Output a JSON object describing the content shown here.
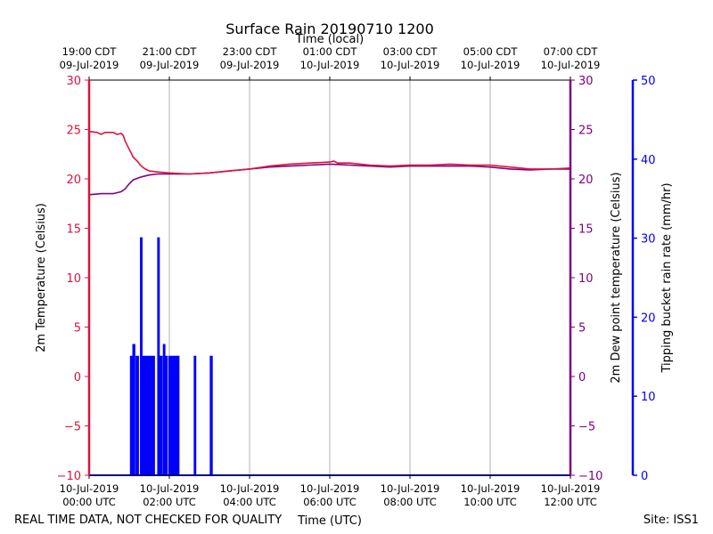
{
  "chart_data": {
    "type": "line",
    "title": "Surface Rain 20190710 1200",
    "top_axis_label": "Time (local)",
    "xlabel": "Time (UTC)",
    "footer_left": "REAL TIME DATA, NOT CHECKED FOR QUALITY",
    "footer_right": "Site: ISS1",
    "x_range_hours": [
      0,
      12
    ],
    "bottom_ticks": [
      {
        "h": 0,
        "line1": "10-Jul-2019",
        "line2": "00:00 UTC"
      },
      {
        "h": 2,
        "line1": "10-Jul-2019",
        "line2": "02:00 UTC"
      },
      {
        "h": 4,
        "line1": "10-Jul-2019",
        "line2": "04:00 UTC"
      },
      {
        "h": 6,
        "line1": "10-Jul-2019",
        "line2": "06:00 UTC"
      },
      {
        "h": 8,
        "line1": "10-Jul-2019",
        "line2": "08:00 UTC"
      },
      {
        "h": 10,
        "line1": "10-Jul-2019",
        "line2": "10:00 UTC"
      },
      {
        "h": 12,
        "line1": "10-Jul-2019",
        "line2": "12:00 UTC"
      }
    ],
    "top_ticks": [
      {
        "h": 0,
        "line1": "19:00 CDT",
        "line2": "09-Jul-2019"
      },
      {
        "h": 2,
        "line1": "21:00 CDT",
        "line2": "09-Jul-2019"
      },
      {
        "h": 4,
        "line1": "23:00 CDT",
        "line2": "09-Jul-2019"
      },
      {
        "h": 6,
        "line1": "01:00 CDT",
        "line2": "10-Jul-2019"
      },
      {
        "h": 8,
        "line1": "03:00 CDT",
        "line2": "10-Jul-2019"
      },
      {
        "h": 10,
        "line1": "05:00 CDT",
        "line2": "10-Jul-2019"
      },
      {
        "h": 12,
        "line1": "07:00 CDT",
        "line2": "10-Jul-2019"
      }
    ],
    "grid": true,
    "left_axis": {
      "label": "2m Temperature (Celsius)",
      "range": [
        -10,
        30
      ],
      "ticks": [
        -10,
        -5,
        0,
        5,
        10,
        15,
        20,
        25,
        30
      ],
      "color": "#dc143c"
    },
    "right_axis": {
      "label": "2m Dew point temperature (Celsius)",
      "range": [
        -10,
        30
      ],
      "ticks": [
        -10,
        -5,
        0,
        5,
        10,
        15,
        20,
        25,
        30
      ],
      "color": "#800080"
    },
    "rain_axis": {
      "label": "Tipping bucket rain rate (mm/hr)",
      "range": [
        0,
        50
      ],
      "ticks": [
        0,
        10,
        20,
        30,
        40,
        50
      ],
      "color": "#0000ff"
    },
    "series": [
      {
        "axis": "left",
        "color": "#dc143c",
        "points": [
          [
            0,
            24.8
          ],
          [
            0.2,
            24.7
          ],
          [
            0.3,
            24.5
          ],
          [
            0.4,
            24.7
          ],
          [
            0.6,
            24.7
          ],
          [
            0.7,
            24.5
          ],
          [
            0.8,
            24.6
          ],
          [
            0.85,
            24.4
          ],
          [
            0.9,
            23.8
          ],
          [
            1.0,
            23.0
          ],
          [
            1.1,
            22.2
          ],
          [
            1.2,
            21.8
          ],
          [
            1.3,
            21.3
          ],
          [
            1.4,
            21.0
          ],
          [
            1.5,
            20.8
          ],
          [
            1.7,
            20.7
          ],
          [
            2.0,
            20.6
          ],
          [
            2.5,
            20.5
          ],
          [
            3.0,
            20.6
          ],
          [
            3.5,
            20.8
          ],
          [
            4.0,
            21.0
          ],
          [
            4.5,
            21.3
          ],
          [
            5.0,
            21.5
          ],
          [
            5.5,
            21.6
          ],
          [
            6.0,
            21.7
          ],
          [
            6.1,
            21.8
          ],
          [
            6.2,
            21.6
          ],
          [
            6.5,
            21.6
          ],
          [
            7.0,
            21.4
          ],
          [
            7.5,
            21.3
          ],
          [
            8.0,
            21.4
          ],
          [
            8.5,
            21.4
          ],
          [
            9.0,
            21.5
          ],
          [
            9.5,
            21.4
          ],
          [
            10.0,
            21.4
          ],
          [
            10.5,
            21.2
          ],
          [
            11.0,
            21.0
          ],
          [
            11.5,
            21.0
          ],
          [
            12.0,
            21.1
          ]
        ]
      },
      {
        "axis": "right",
        "color": "#800080",
        "points": [
          [
            0,
            18.4
          ],
          [
            0.3,
            18.5
          ],
          [
            0.6,
            18.5
          ],
          [
            0.7,
            18.6
          ],
          [
            0.8,
            18.7
          ],
          [
            0.9,
            19.0
          ],
          [
            1.0,
            19.5
          ],
          [
            1.1,
            19.9
          ],
          [
            1.3,
            20.2
          ],
          [
            1.5,
            20.4
          ],
          [
            1.7,
            20.5
          ],
          [
            2.0,
            20.5
          ],
          [
            2.5,
            20.5
          ],
          [
            3.0,
            20.6
          ],
          [
            3.5,
            20.8
          ],
          [
            4.0,
            21.0
          ],
          [
            4.5,
            21.2
          ],
          [
            5.0,
            21.3
          ],
          [
            5.5,
            21.4
          ],
          [
            6.0,
            21.5
          ],
          [
            6.5,
            21.4
          ],
          [
            7.0,
            21.3
          ],
          [
            7.5,
            21.2
          ],
          [
            8.0,
            21.3
          ],
          [
            8.5,
            21.3
          ],
          [
            9.0,
            21.3
          ],
          [
            9.5,
            21.3
          ],
          [
            10.0,
            21.2
          ],
          [
            10.5,
            21.0
          ],
          [
            11.0,
            20.9
          ],
          [
            11.5,
            21.0
          ],
          [
            12.0,
            21.0
          ]
        ]
      },
      {
        "axis": "rain",
        "color": "#0000ff",
        "bursts": [
          {
            "start": 1.04,
            "end": 1.08,
            "value": 15
          },
          {
            "start": 1.1,
            "end": 1.13,
            "value": 16.5
          },
          {
            "start": 1.18,
            "end": 1.22,
            "value": 15
          },
          {
            "start": 1.29,
            "end": 1.31,
            "value": 30
          },
          {
            "start": 1.33,
            "end": 1.36,
            "value": 15
          },
          {
            "start": 1.38,
            "end": 1.42,
            "value": 15
          },
          {
            "start": 1.45,
            "end": 1.48,
            "value": 15
          },
          {
            "start": 1.52,
            "end": 1.55,
            "value": 15
          },
          {
            "start": 1.58,
            "end": 1.62,
            "value": 15
          },
          {
            "start": 1.72,
            "end": 1.74,
            "value": 30
          },
          {
            "start": 1.78,
            "end": 1.81,
            "value": 15
          },
          {
            "start": 1.86,
            "end": 1.88,
            "value": 16.5
          },
          {
            "start": 1.91,
            "end": 1.94,
            "value": 15
          },
          {
            "start": 2.0,
            "end": 2.03,
            "value": 15
          },
          {
            "start": 2.06,
            "end": 2.1,
            "value": 15
          },
          {
            "start": 2.13,
            "end": 2.16,
            "value": 15
          },
          {
            "start": 2.19,
            "end": 2.23,
            "value": 15
          },
          {
            "start": 2.63,
            "end": 2.65,
            "value": 15
          },
          {
            "start": 3.03,
            "end": 3.06,
            "value": 15
          }
        ]
      }
    ]
  }
}
